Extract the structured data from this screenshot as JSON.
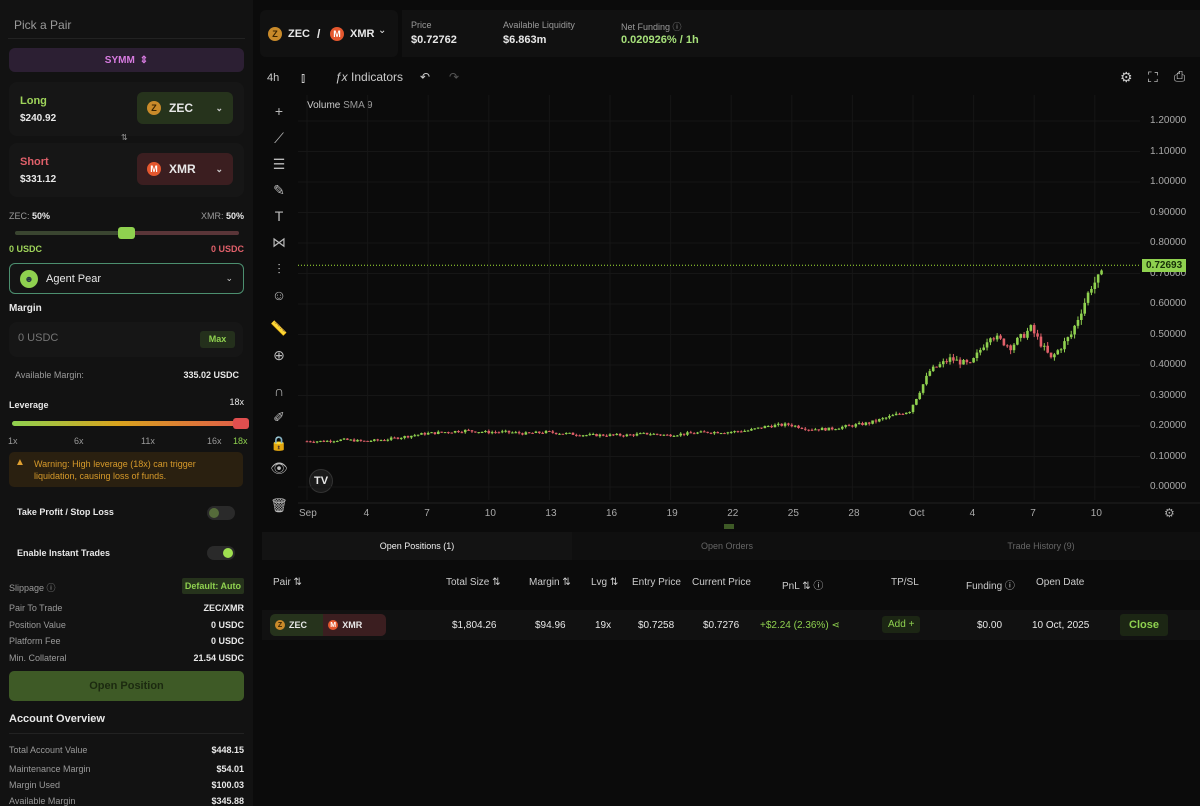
{
  "left": {
    "title": "Pick a Pair",
    "exchange": "SYMM",
    "long": {
      "label": "Long",
      "value": "$240.92",
      "token": "ZEC"
    },
    "short": {
      "label": "Short",
      "value": "$331.12",
      "token": "XMR"
    },
    "swap_icon": "⇅",
    "ratio": {
      "left_label": "ZEC:",
      "left_pct": "50%",
      "right_label": "XMR:",
      "right_pct": "50%",
      "left_amount": "0 USDC",
      "right_amount": "0 USDC",
      "value": 0.5
    },
    "agent": "Agent Pear",
    "margin": {
      "label": "Margin",
      "placeholder": "0 USDC",
      "max": "Max",
      "available_label": "Available Margin:",
      "available_value": "335.02 USDC"
    },
    "leverage": {
      "label": "Leverage",
      "value": "18x",
      "level": 18,
      "ticks": [
        "1x",
        "6x",
        "11x",
        "16x",
        "18x"
      ]
    },
    "warning": "Warning: High leverage (18x) can trigger liquidation, causing loss of funds.",
    "tpsl": {
      "label": "Take Profit / Stop Loss",
      "on": false
    },
    "instant": {
      "label": "Enable Instant Trades",
      "on": true
    },
    "slippage": {
      "label": "Slippage",
      "value": "Default: Auto"
    },
    "summary": [
      {
        "label": "Pair To Trade",
        "value": "ZEC/XMR"
      },
      {
        "label": "Position Value",
        "value": "0 USDC"
      },
      {
        "label": "Platform Fee",
        "value": "0 USDC"
      },
      {
        "label": "Min. Collateral",
        "value": "21.54 USDC"
      }
    ],
    "open_button": "Open Position",
    "account": {
      "title": "Account Overview",
      "rows": [
        {
          "label": "Total Account Value",
          "value": "$448.15"
        },
        {
          "label": "Maintenance Margin",
          "value": "$54.01"
        },
        {
          "label": "Margin Used",
          "value": "$100.03"
        },
        {
          "label": "Available Margin",
          "value": "$345.88"
        }
      ]
    }
  },
  "header": {
    "base": "ZEC",
    "sep": "/",
    "quote": "XMR",
    "price_label": "Price",
    "price": "$0.72762",
    "liq_label": "Available Liquidity",
    "liq": "$6.863m",
    "funding_label": "Net Funding",
    "funding": "0.020926% / 1h"
  },
  "toolbar": {
    "interval": "4h",
    "indicators": "Indicators"
  },
  "chart": {
    "legend_title": "Volume",
    "legend_sub": "SMA 9",
    "current_price": "0.72693",
    "y_ticks": [
      "1.20000",
      "1.10000",
      "1.00000",
      "0.90000",
      "0.80000",
      "0.70000",
      "0.60000",
      "0.50000",
      "0.40000",
      "0.30000",
      "0.20000",
      "0.10000",
      "0.00000"
    ],
    "x_ticks": [
      "Sep",
      "4",
      "7",
      "10",
      "13",
      "16",
      "19",
      "22",
      "25",
      "28",
      "Oct",
      "4",
      "7",
      "10"
    ],
    "colors": {
      "up": "#8fd14f",
      "down": "#e0606a",
      "accent": "#a3e635"
    }
  },
  "chart_data": {
    "type": "candlestick",
    "x_start": "Sep 1",
    "x_end": "Oct 10",
    "ylim": [
      0,
      1.2
    ],
    "daily_close": [
      0.15,
      0.15,
      0.155,
      0.15,
      0.155,
      0.165,
      0.175,
      0.18,
      0.185,
      0.18,
      0.18,
      0.175,
      0.18,
      0.175,
      0.17,
      0.17,
      0.17,
      0.175,
      0.17,
      0.175,
      0.18,
      0.18,
      0.185,
      0.2,
      0.205,
      0.19,
      0.19,
      0.2,
      0.21,
      0.23,
      0.25,
      0.38,
      0.42,
      0.4,
      0.5,
      0.46,
      0.52,
      0.42,
      0.5,
      0.66,
      0.727
    ]
  },
  "positions": {
    "tabs": [
      "Open Positions (1)",
      "Open Orders",
      "Trade History (9)"
    ],
    "columns": [
      "Pair ⇅",
      "Total Size ⇅",
      "Margin ⇅",
      "Lvg ⇅",
      "Entry Price",
      "Current Price",
      "PnL ⇅ ⓘ",
      "TP/SL",
      "Funding ⓘ",
      "Open Date"
    ],
    "row": {
      "long": "ZEC",
      "short": "XMR",
      "size": "$1,804.26",
      "margin": "$94.96",
      "lvg": "19x",
      "entry": "$0.7258",
      "current": "$0.7276",
      "pnl": "+$2.24 (2.36%)",
      "tpsl": "Add +",
      "funding": "$0.00",
      "date": "10 Oct, 2025",
      "close": "Close"
    }
  }
}
